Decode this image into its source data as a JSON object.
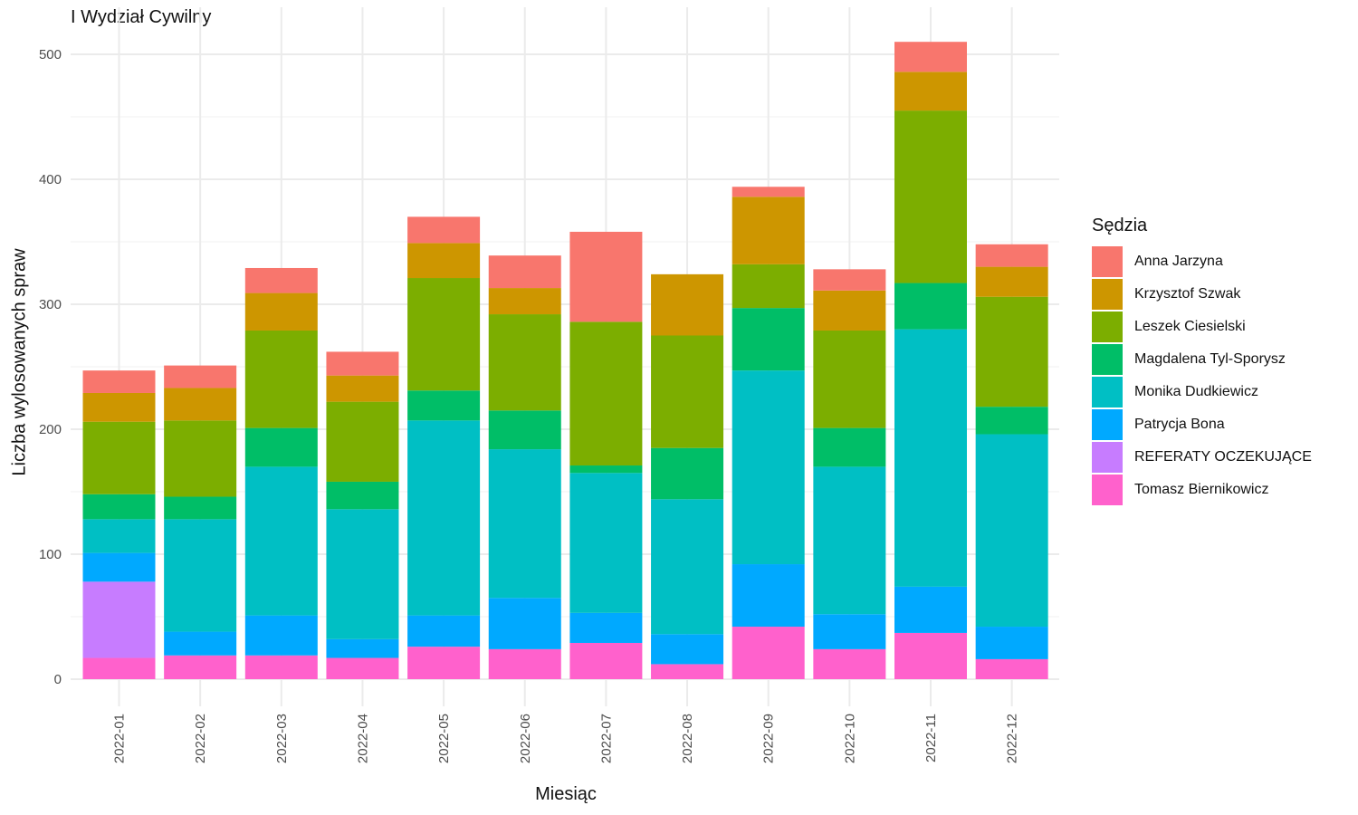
{
  "chart_data": {
    "type": "bar",
    "stacked": true,
    "title": "I Wydział Cywilny",
    "xlabel": "Miesiąc",
    "ylabel": "Liczba wylosowanych spraw",
    "ylim": [
      0,
      520
    ],
    "yticks": [
      0,
      100,
      200,
      300,
      400,
      500
    ],
    "grid": true,
    "legend_title": "Sędzia",
    "legend_position": "right",
    "categories": [
      "2022-01",
      "2022-02",
      "2022-03",
      "2022-04",
      "2022-05",
      "2022-06",
      "2022-07",
      "2022-08",
      "2022-09",
      "2022-10",
      "2022-11",
      "2022-12"
    ],
    "series": [
      {
        "name": "Tomasz Biernikowicz",
        "color": "#FF61CC",
        "values": [
          17,
          19,
          19,
          17,
          26,
          24,
          29,
          12,
          42,
          24,
          37,
          16
        ]
      },
      {
        "name": "REFERATY OCZEKUJĄCE",
        "color": "#C77CFF",
        "values": [
          61,
          0,
          0,
          0,
          0,
          0,
          0,
          0,
          0,
          0,
          0,
          0
        ]
      },
      {
        "name": "Patrycja Bona",
        "color": "#00A9FF",
        "values": [
          23,
          19,
          32,
          15,
          25,
          41,
          24,
          24,
          50,
          28,
          37,
          26
        ]
      },
      {
        "name": "Monika Dudkiewicz",
        "color": "#00BFC4",
        "values": [
          27,
          90,
          119,
          104,
          156,
          119,
          112,
          108,
          155,
          118,
          206,
          154
        ]
      },
      {
        "name": "Magdalena Tyl-Sporysz",
        "color": "#00BE67",
        "values": [
          20,
          18,
          31,
          22,
          24,
          31,
          6,
          41,
          50,
          31,
          37,
          22
        ]
      },
      {
        "name": "Leszek Ciesielski",
        "color": "#7CAE00",
        "values": [
          58,
          61,
          78,
          64,
          90,
          77,
          115,
          90,
          35,
          78,
          138,
          88
        ]
      },
      {
        "name": "Krzysztof Szwak",
        "color": "#CD9600",
        "values": [
          23,
          26,
          30,
          21,
          28,
          21,
          0,
          49,
          54,
          32,
          31,
          24
        ]
      },
      {
        "name": "Anna Jarzyna",
        "color": "#F8766D",
        "values": [
          18,
          18,
          20,
          19,
          21,
          26,
          72,
          0,
          8,
          17,
          24,
          18
        ]
      }
    ],
    "legend_order": [
      "Anna Jarzyna",
      "Krzysztof Szwak",
      "Leszek Ciesielski",
      "Magdalena Tyl-Sporysz",
      "Monika Dudkiewicz",
      "Patrycja Bona",
      "REFERATY OCZEKUJĄCE",
      "Tomasz Biernikowicz"
    ]
  }
}
